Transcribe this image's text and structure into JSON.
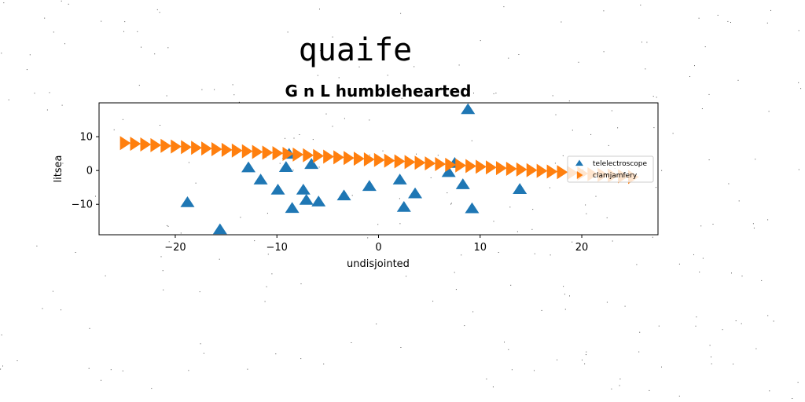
{
  "chart_data": {
    "type": "scatter",
    "suptitle": "quaife",
    "title": "G n L humblehearted",
    "xlabel": "undisjointed",
    "ylabel": "litsea",
    "xlim": [
      -27.5,
      27.5
    ],
    "ylim": [
      -19,
      20
    ],
    "xticks": [
      -20,
      -10,
      0,
      10,
      20
    ],
    "xtick_labels": [
      "−20",
      "−10",
      "0",
      "10",
      "20"
    ],
    "yticks": [
      -10,
      0,
      10
    ],
    "ytick_labels": [
      "−10",
      "0",
      "10"
    ],
    "grid": false,
    "legend_position": "center-right",
    "series": [
      {
        "name": "telelectroscope",
        "marker": "triangle-up",
        "color": "#1f77b4",
        "points": [
          {
            "x": -18.8,
            "y": -9.5
          },
          {
            "x": -15.6,
            "y": -17.5
          },
          {
            "x": -12.8,
            "y": 0.8
          },
          {
            "x": -11.6,
            "y": -2.8
          },
          {
            "x": -9.9,
            "y": -5.8
          },
          {
            "x": -9.1,
            "y": 0.9
          },
          {
            "x": -8.8,
            "y": 4.8
          },
          {
            "x": -8.5,
            "y": -11.2
          },
          {
            "x": -7.4,
            "y": -5.8
          },
          {
            "x": -7.1,
            "y": -8.8
          },
          {
            "x": -6.6,
            "y": 1.8
          },
          {
            "x": -5.9,
            "y": -9.3
          },
          {
            "x": -3.4,
            "y": -7.5
          },
          {
            "x": -0.9,
            "y": -4.7
          },
          {
            "x": 2.1,
            "y": -2.8
          },
          {
            "x": 2.5,
            "y": -10.9
          },
          {
            "x": 3.6,
            "y": -6.9
          },
          {
            "x": 6.9,
            "y": -0.6
          },
          {
            "x": 7.5,
            "y": 2.1
          },
          {
            "x": 8.3,
            "y": -4.2
          },
          {
            "x": 8.8,
            "y": 18.0
          },
          {
            "x": 9.2,
            "y": -11.3
          },
          {
            "x": 13.9,
            "y": -5.6
          }
        ]
      },
      {
        "name": "clamjamfery",
        "marker": "triangle-right",
        "color": "#ff7f0e",
        "points": [
          {
            "x": -25.0,
            "y": 8.1
          },
          {
            "x": -24.0,
            "y": 7.9
          },
          {
            "x": -23.0,
            "y": 7.7
          },
          {
            "x": -22.0,
            "y": 7.5
          },
          {
            "x": -21.0,
            "y": 7.3
          },
          {
            "x": -20.0,
            "y": 7.1
          },
          {
            "x": -19.0,
            "y": 6.9
          },
          {
            "x": -18.0,
            "y": 6.7
          },
          {
            "x": -17.0,
            "y": 6.5
          },
          {
            "x": -16.0,
            "y": 6.3
          },
          {
            "x": -15.0,
            "y": 6.1
          },
          {
            "x": -14.0,
            "y": 5.9
          },
          {
            "x": -13.0,
            "y": 5.7
          },
          {
            "x": -12.0,
            "y": 5.5
          },
          {
            "x": -11.0,
            "y": 5.3
          },
          {
            "x": -10.0,
            "y": 5.1
          },
          {
            "x": -9.0,
            "y": 4.9
          },
          {
            "x": -8.0,
            "y": 4.7
          },
          {
            "x": -7.0,
            "y": 4.5
          },
          {
            "x": -6.0,
            "y": 4.3
          },
          {
            "x": -5.0,
            "y": 4.1
          },
          {
            "x": -4.0,
            "y": 3.9
          },
          {
            "x": -3.0,
            "y": 3.7
          },
          {
            "x": -2.0,
            "y": 3.5
          },
          {
            "x": -1.0,
            "y": 3.3
          },
          {
            "x": 0.0,
            "y": 3.1
          },
          {
            "x": 1.0,
            "y": 2.9
          },
          {
            "x": 2.0,
            "y": 2.7
          },
          {
            "x": 3.0,
            "y": 2.5
          },
          {
            "x": 4.0,
            "y": 2.3
          },
          {
            "x": 5.0,
            "y": 2.1
          },
          {
            "x": 6.0,
            "y": 1.9
          },
          {
            "x": 7.0,
            "y": 1.7
          },
          {
            "x": 8.0,
            "y": 1.5
          },
          {
            "x": 9.0,
            "y": 1.3
          },
          {
            "x": 10.0,
            "y": 1.1
          },
          {
            "x": 11.0,
            "y": 0.9
          },
          {
            "x": 12.0,
            "y": 0.7
          },
          {
            "x": 13.0,
            "y": 0.5
          },
          {
            "x": 14.0,
            "y": 0.3
          },
          {
            "x": 15.0,
            "y": 0.1
          },
          {
            "x": 16.0,
            "y": -0.1
          },
          {
            "x": 17.0,
            "y": -0.3
          },
          {
            "x": 18.0,
            "y": -0.5
          },
          {
            "x": 19.0,
            "y": -0.7
          },
          {
            "x": 20.0,
            "y": -0.9
          },
          {
            "x": 21.0,
            "y": -1.1
          },
          {
            "x": 22.0,
            "y": -1.3
          },
          {
            "x": 23.0,
            "y": -1.5
          },
          {
            "x": 24.0,
            "y": -1.7
          },
          {
            "x": 25.0,
            "y": -1.9
          }
        ]
      }
    ]
  }
}
